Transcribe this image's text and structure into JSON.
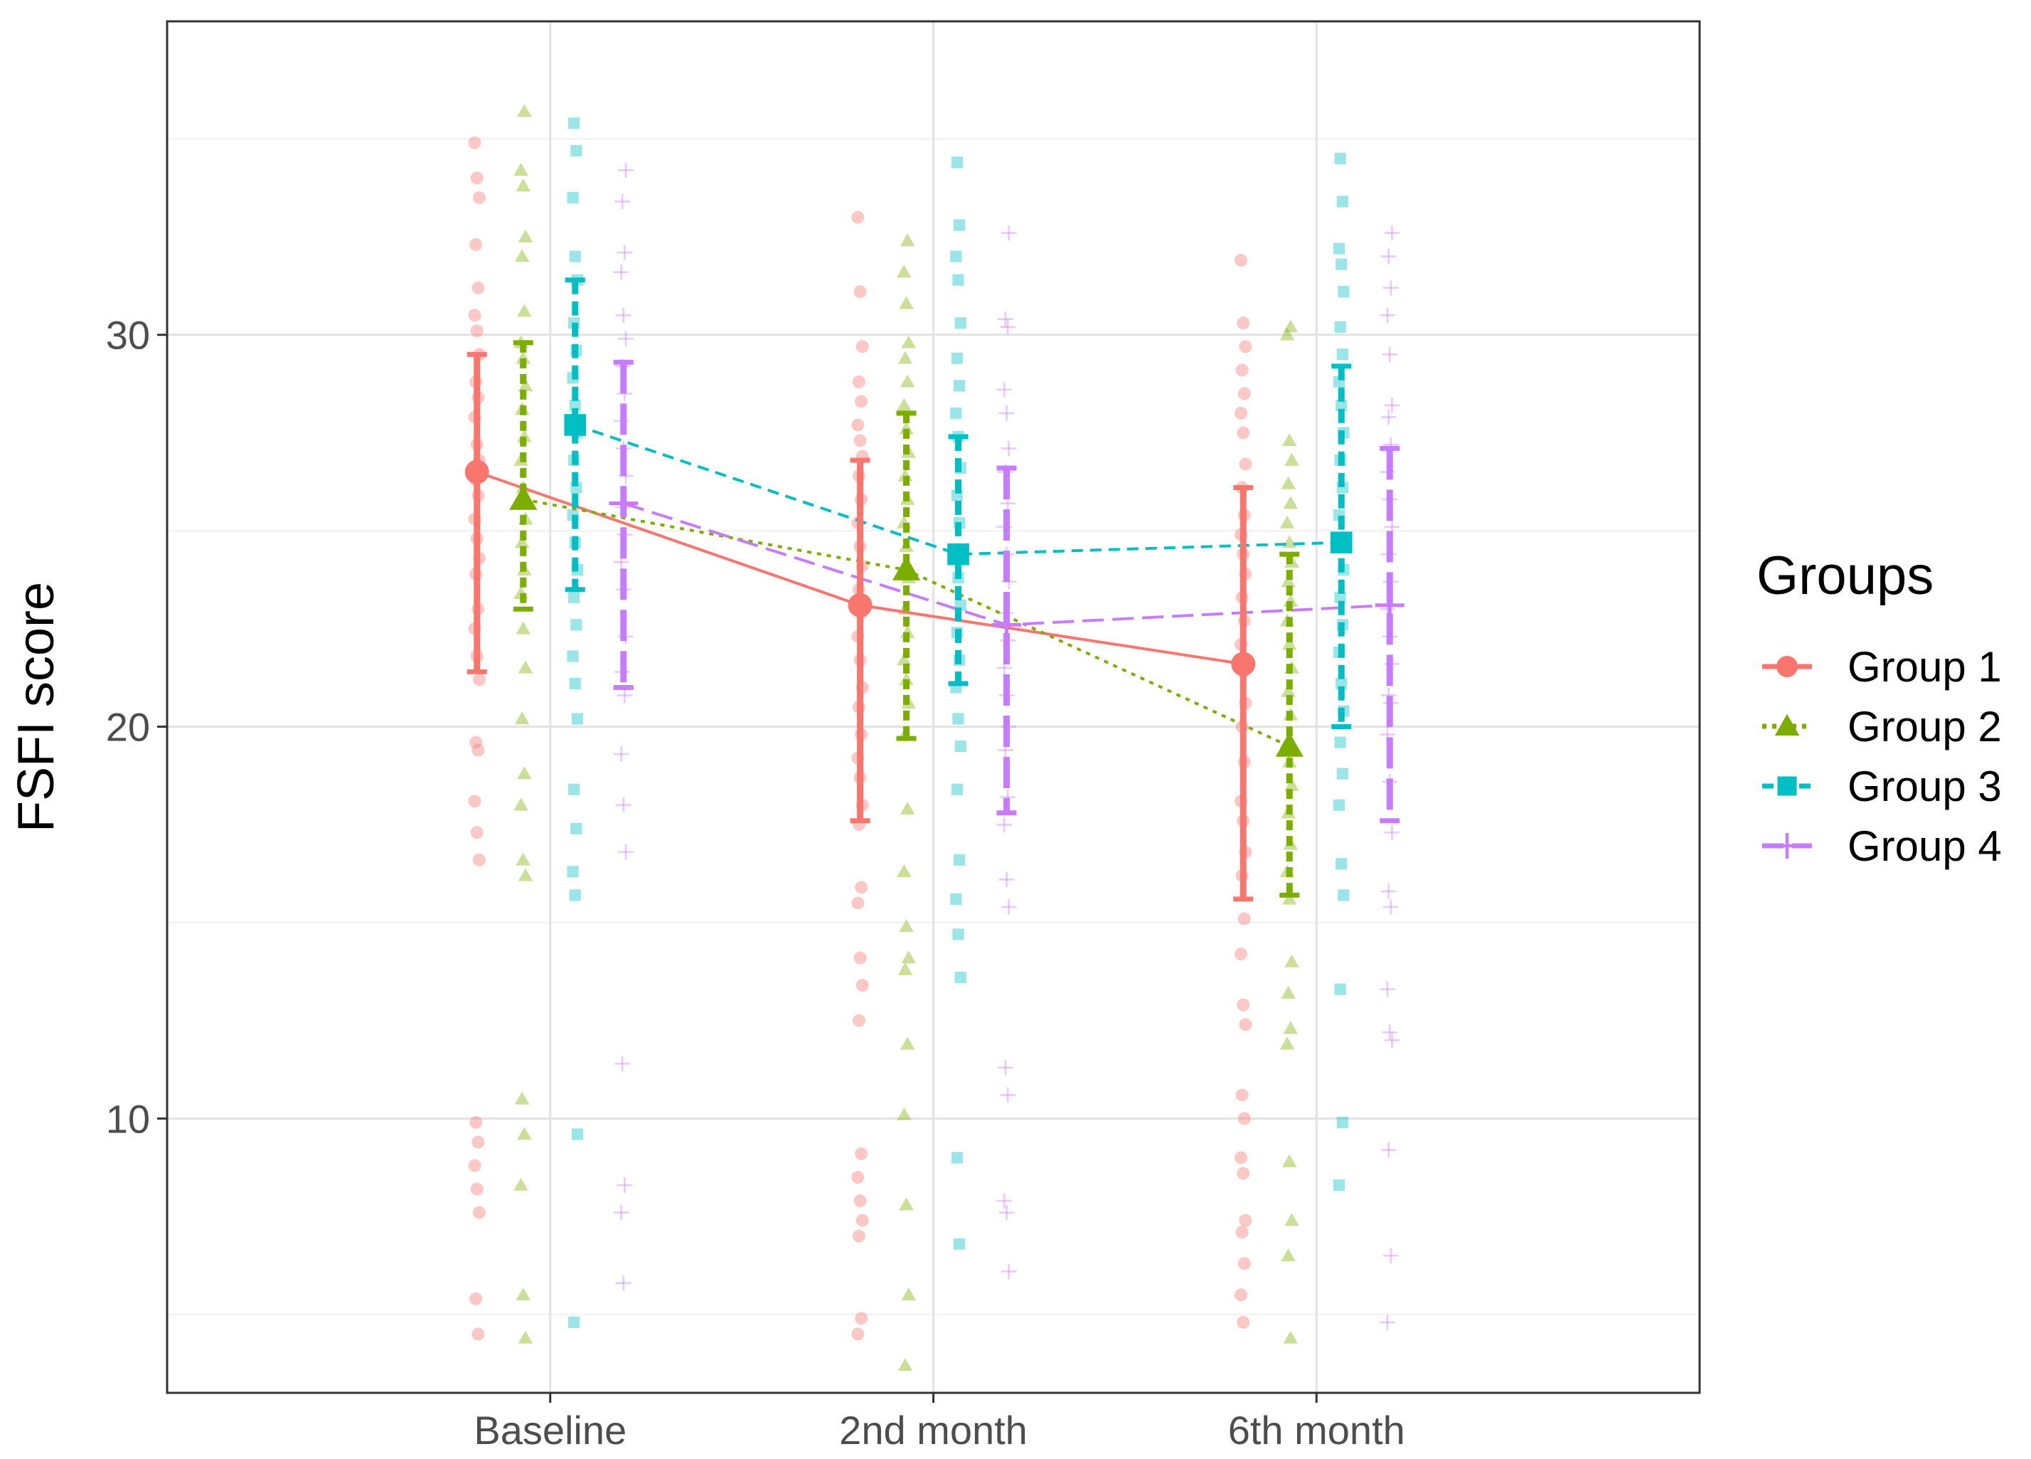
{
  "chart_data": {
    "type": "scatter",
    "xlabel": "",
    "ylabel": "FSFI score",
    "categories": [
      "Baseline",
      "2nd month",
      "6th month"
    ],
    "ylim": [
      3,
      38
    ],
    "yticks": [
      10,
      20,
      30
    ],
    "grid": true,
    "legend_title": "Groups",
    "legend_position": "right",
    "series": [
      {
        "name": "Group 1",
        "color": "#F8766D",
        "shape": "circle",
        "linetype": "solid",
        "mean": [
          26.5,
          23.1,
          21.6
        ],
        "err_low": [
          21.4,
          17.6,
          15.6
        ],
        "err_high": [
          29.5,
          26.8,
          26.1
        ],
        "points": [
          [
            34.9,
            34.0,
            33.5,
            32.3,
            31.2,
            30.5,
            30.1,
            29.5,
            28.8,
            28.4,
            27.9,
            27.2,
            26.8,
            26.3,
            25.9,
            25.3,
            24.8,
            24.3,
            23.9,
            23.0,
            22.5,
            21.8,
            21.2,
            19.6,
            19.4,
            18.1,
            17.3,
            16.6,
            9.9,
            9.4,
            8.8,
            8.2,
            7.6,
            5.4,
            4.5
          ],
          [
            33.0,
            31.1,
            29.7,
            28.8,
            28.3,
            27.7,
            27.3,
            26.9,
            26.4,
            25.8,
            25.2,
            24.6,
            24.1,
            23.5,
            22.9,
            22.3,
            21.7,
            21.0,
            20.5,
            19.8,
            19.2,
            18.7,
            18.0,
            17.5,
            15.9,
            15.5,
            14.1,
            13.4,
            12.5,
            9.1,
            8.5,
            7.9,
            7.4,
            7.0,
            4.9,
            4.5
          ],
          [
            31.9,
            30.3,
            29.7,
            29.1,
            28.5,
            28.0,
            27.5,
            26.7,
            26.1,
            25.4,
            24.9,
            24.4,
            23.9,
            23.3,
            22.7,
            22.1,
            21.4,
            20.6,
            20.0,
            19.1,
            18.1,
            17.6,
            16.8,
            16.2,
            15.1,
            14.2,
            12.9,
            12.4,
            10.6,
            10.0,
            9.0,
            8.6,
            7.4,
            7.1,
            6.3,
            5.5,
            4.8
          ]
        ]
      },
      {
        "name": "Group 2",
        "color": "#7CAE00",
        "shape": "triangle",
        "linetype": "dotted",
        "mean": [
          25.8,
          24.0,
          19.5
        ],
        "err_low": [
          23.0,
          19.7,
          15.7
        ],
        "err_high": [
          29.8,
          28.0,
          24.4
        ],
        "points": [
          [
            35.7,
            34.2,
            33.8,
            32.5,
            32.0,
            30.6,
            29.8,
            29.4,
            28.7,
            28.1,
            27.4,
            26.8,
            26.1,
            25.3,
            24.7,
            24.0,
            23.4,
            22.5,
            21.5,
            20.2,
            18.8,
            18.0,
            16.6,
            16.2,
            10.5,
            9.6,
            8.3,
            5.5,
            4.4
          ],
          [
            32.4,
            31.6,
            30.8,
            29.8,
            29.4,
            28.8,
            28.2,
            27.6,
            27.0,
            26.4,
            25.8,
            25.2,
            24.6,
            23.8,
            23.0,
            22.4,
            21.7,
            21.2,
            20.6,
            19.8,
            17.9,
            16.3,
            14.9,
            14.1,
            13.8,
            11.9,
            10.1,
            7.8,
            5.5,
            3.7
          ],
          [
            30.2,
            30.0,
            27.3,
            26.8,
            26.2,
            25.7,
            25.2,
            24.7,
            24.2,
            23.7,
            23.2,
            22.7,
            22.1,
            21.5,
            20.9,
            20.3,
            19.6,
            19.1,
            18.5,
            17.8,
            17.0,
            16.3,
            15.6,
            14.0,
            13.2,
            12.3,
            11.9,
            8.9,
            7.4,
            6.5,
            4.4
          ]
        ]
      },
      {
        "name": "Group 3",
        "color": "#00BFC4",
        "shape": "square",
        "linetype": "dashed",
        "mean": [
          27.7,
          24.4,
          24.7
        ],
        "err_low": [
          23.5,
          21.1,
          20.0
        ],
        "err_high": [
          31.4,
          27.4,
          29.2
        ],
        "points": [
          [
            35.4,
            34.7,
            33.5,
            32.0,
            31.4,
            30.3,
            29.6,
            28.9,
            28.2,
            27.5,
            26.8,
            26.1,
            25.4,
            24.7,
            24.0,
            23.3,
            22.6,
            21.8,
            21.1,
            20.2,
            18.4,
            17.4,
            16.3,
            15.7,
            9.6,
            4.8
          ],
          [
            34.4,
            32.8,
            32.0,
            31.4,
            30.3,
            29.4,
            28.7,
            28.0,
            27.4,
            26.6,
            25.9,
            25.2,
            24.5,
            23.8,
            23.1,
            22.4,
            21.7,
            21.0,
            20.2,
            19.5,
            18.4,
            16.6,
            15.6,
            14.7,
            13.6,
            9.0,
            6.8
          ],
          [
            34.5,
            33.4,
            32.2,
            31.8,
            31.1,
            30.2,
            29.5,
            28.8,
            28.2,
            27.5,
            26.8,
            26.1,
            25.4,
            24.7,
            24.0,
            23.3,
            22.6,
            21.9,
            21.1,
            20.4,
            19.6,
            18.8,
            18.0,
            16.5,
            15.7,
            13.3,
            9.9,
            8.3
          ]
        ]
      },
      {
        "name": "Group 4",
        "color": "#C77CFF",
        "shape": "plus",
        "linetype": "longdash",
        "mean": [
          25.7,
          22.6,
          23.1
        ],
        "err_low": [
          21.0,
          17.8,
          17.6
        ],
        "err_high": [
          29.3,
          26.6,
          27.1
        ],
        "points": [
          [
            34.2,
            33.4,
            32.1,
            31.6,
            30.5,
            29.9,
            29.2,
            28.5,
            27.8,
            27.1,
            26.4,
            25.6,
            24.9,
            24.2,
            23.5,
            22.3,
            21.4,
            20.8,
            19.3,
            18.0,
            16.8,
            11.4,
            8.3,
            7.6,
            5.8
          ],
          [
            32.6,
            30.4,
            30.2,
            28.6,
            28.0,
            27.1,
            26.5,
            25.7,
            25.1,
            24.4,
            23.7,
            22.9,
            22.2,
            21.5,
            20.8,
            20.0,
            19.4,
            18.2,
            17.5,
            16.1,
            15.4,
            11.3,
            10.6,
            7.9,
            7.6,
            6.1
          ],
          [
            32.6,
            32.0,
            31.2,
            30.5,
            29.5,
            28.2,
            27.9,
            27.2,
            26.5,
            25.8,
            25.1,
            24.4,
            23.7,
            23.0,
            22.3,
            21.6,
            20.8,
            20.6,
            19.8,
            18.6,
            17.3,
            15.8,
            15.4,
            13.3,
            12.2,
            12.0,
            9.2,
            6.5,
            4.8
          ]
        ]
      }
    ]
  }
}
